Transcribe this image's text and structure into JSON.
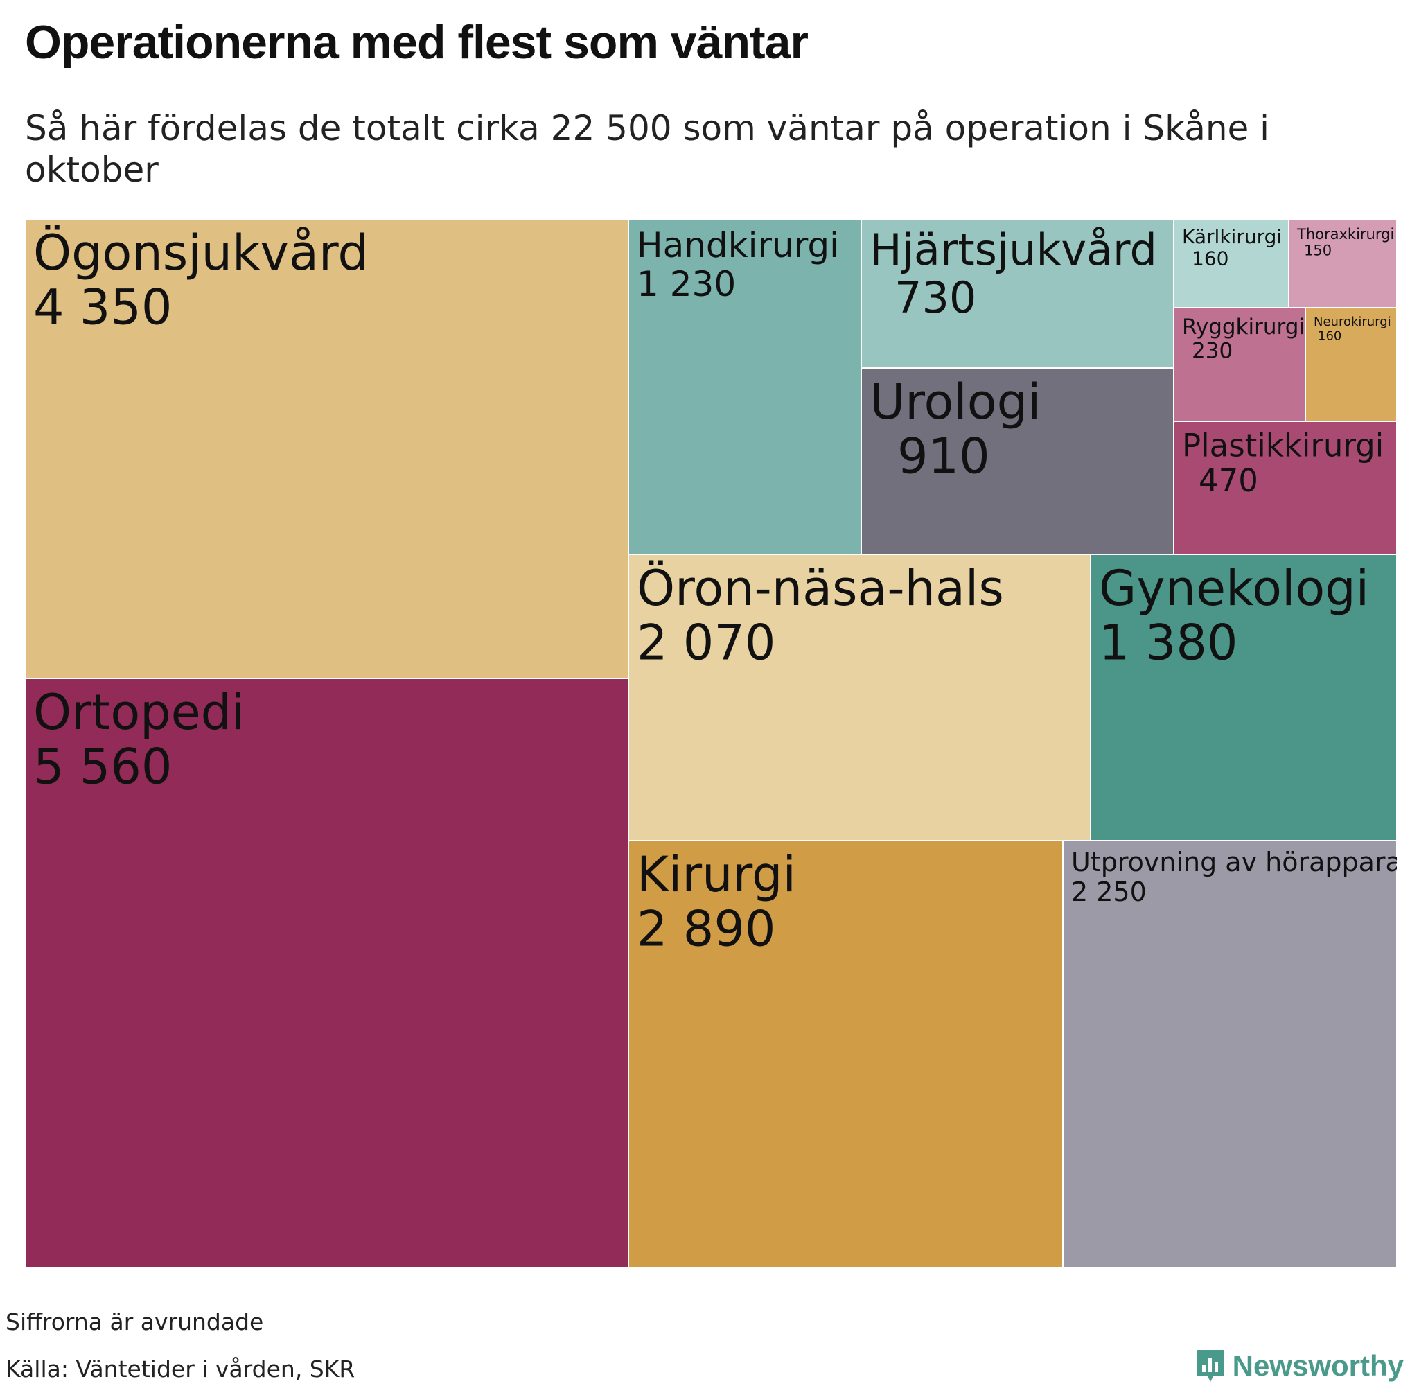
{
  "header": {
    "title": "Operationerna med flest som väntar",
    "subtitle": "Så här fördelas de totalt cirka 22 500 som väntar på operation i Skåne i oktober"
  },
  "chart_data": {
    "type": "treemap",
    "title": "Operationerna med flest som väntar",
    "subtitle": "Så här fördelas de totalt cirka 22 500 som väntar på operation i Skåne i oktober",
    "total_approx": 22500,
    "items": [
      {
        "label": "Ögonsjukvård",
        "value": 4350,
        "display": "4 350",
        "color": "#e0bf82"
      },
      {
        "label": "Ortopedi",
        "value": 5560,
        "display": "5 560",
        "color": "#922b57"
      },
      {
        "label": "Handkirurgi",
        "value": 1230,
        "display": "1 230",
        "color": "#7cb4ad"
      },
      {
        "label": "Hjärtsjukvård",
        "value": 730,
        "display": "730",
        "color": "#98c5bf"
      },
      {
        "label": "Kärlkirurgi",
        "value": 160,
        "display": "160",
        "color": "#b2d7d2"
      },
      {
        "label": "Thoraxkirurgi",
        "value": 150,
        "display": "150",
        "color": "#d49db3"
      },
      {
        "label": "Ryggkirurgi",
        "value": 230,
        "display": "230",
        "color": "#bf7192"
      },
      {
        "label": "Neurokirurgi",
        "value": 160,
        "display": "160",
        "color": "#d8aa5b"
      },
      {
        "label": "Urologi",
        "value": 910,
        "display": "910",
        "color": "#73707e"
      },
      {
        "label": "Plastikkirurgi",
        "value": 470,
        "display": "470",
        "color": "#a84a72"
      },
      {
        "label": "Öron-näsa-hals",
        "value": 2070,
        "display": "2 070",
        "color": "#e8d2a2"
      },
      {
        "label": "Gynekologi",
        "value": 1380,
        "display": "1 380",
        "color": "#4b9689"
      },
      {
        "label": "Kirurgi",
        "value": 2890,
        "display": "2 890",
        "color": "#d09c46"
      },
      {
        "label": "Utprovning av hörapparat",
        "value": 2250,
        "display": "2 250",
        "color": "#9c9aa7"
      }
    ]
  },
  "footer": {
    "note": "Siffrorna är avrundade",
    "source": "Källa: Väntetider i vården, SKR",
    "brand": "Newsworthy",
    "brand_color": "#4a9a8c"
  }
}
